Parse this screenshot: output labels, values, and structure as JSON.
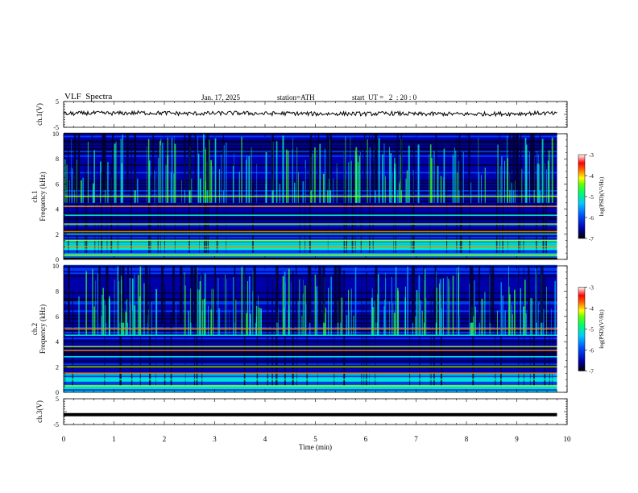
{
  "header": {
    "title": "VLF  Spectra",
    "date": "Jan. 17, 2025",
    "station": "station=ATH",
    "start_ut": "start  UT =   2  : 20 : 0"
  },
  "colors": {
    "colormap": [
      "#000033",
      "#0000aa",
      "#0044ff",
      "#00aaff",
      "#00ffcc",
      "#33ff33",
      "#aaff00",
      "#ffff00",
      "#ff8800",
      "#ff0000",
      "#ffffff"
    ],
    "trace": "#000000",
    "background": "#ffffff"
  },
  "chart_data": [
    {
      "type": "line",
      "panel": "ch1-waveform",
      "ylabel": "ch.1(V)",
      "ylim": [
        -5,
        5
      ],
      "yticks": [
        "5",
        "-5"
      ],
      "xlim": [
        0,
        10
      ],
      "x": [
        0,
        0.5,
        1,
        1.5,
        2,
        2.5,
        3,
        3.5,
        4,
        4.5,
        5,
        5.5,
        6,
        6.5,
        7,
        7.5,
        8,
        8.5,
        9,
        9.5,
        9.8
      ],
      "y": [
        0.2,
        0.5,
        0.4,
        0.6,
        0.5,
        0.3,
        0.4,
        0.5,
        0.3,
        0.4,
        0.2,
        0.3,
        0.2,
        0.4,
        0.1,
        0.2,
        0.1,
        0.2,
        0.3,
        0.5,
        0.2
      ]
    },
    {
      "type": "heatmap",
      "panel": "ch1-spectrogram",
      "ylabel": "ch.1\nFrequency (kHz)",
      "ylim": [
        0,
        10
      ],
      "yticks": [
        "0",
        "2",
        "4",
        "6",
        "8",
        "10"
      ],
      "xlim": [
        0,
        10
      ],
      "colorbar_label": "log(PSD)(V²/Hz)",
      "colorbar_ticks": [
        "-3",
        "-4",
        "-5",
        "-6",
        "-7"
      ],
      "bands_khz": [
        0.3,
        0.8,
        1.0,
        1.5,
        2.0,
        2.2,
        2.8,
        3.5,
        4.2,
        5.0
      ]
    },
    {
      "type": "heatmap",
      "panel": "ch2-spectrogram",
      "ylabel": "ch.2\nFrequency (kHz)",
      "ylim": [
        0,
        10
      ],
      "yticks": [
        "0",
        "2",
        "4",
        "6",
        "8",
        "10"
      ],
      "xlim": [
        0,
        10
      ],
      "colorbar_label": "log(PSD)(V²/Hz)",
      "colorbar_ticks": [
        "-3",
        "-4",
        "-5",
        "-6",
        "-7"
      ],
      "bands_khz": [
        0.5,
        1.0,
        1.5,
        2.0,
        2.8,
        3.3,
        3.6,
        4.5,
        5.0
      ]
    },
    {
      "type": "line",
      "panel": "ch3-waveform",
      "ylabel": "ch.3(V)",
      "ylim": [
        -5,
        5
      ],
      "yticks": [
        "5",
        "-5"
      ],
      "xlim": [
        0,
        10
      ],
      "x": [
        0,
        9.8
      ],
      "y": [
        -1.2,
        -1.2
      ]
    }
  ],
  "xaxis": {
    "label": "Time  (min)",
    "ticks": [
      "0",
      "1",
      "2",
      "3",
      "4",
      "5",
      "6",
      "7",
      "8",
      "9",
      "10"
    ]
  }
}
